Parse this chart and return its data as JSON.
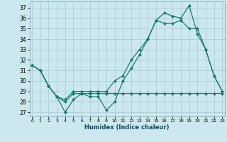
{
  "xlabel": "Humidex (Indice chaleur)",
  "background_color": "#cce8ee",
  "line_color": "#1a7a6e",
  "grid_color": "#aacdd6",
  "x_ticks": [
    0,
    1,
    2,
    3,
    4,
    5,
    6,
    7,
    8,
    9,
    10,
    11,
    12,
    13,
    14,
    15,
    16,
    17,
    18,
    19,
    20,
    21,
    22,
    23
  ],
  "y_ticks": [
    27,
    28,
    29,
    30,
    31,
    32,
    33,
    34,
    35,
    36,
    37
  ],
  "xlim": [
    -0.3,
    23.3
  ],
  "ylim": [
    26.6,
    37.6
  ],
  "line1_x": [
    0,
    1,
    2,
    3,
    4,
    5,
    6,
    7,
    8,
    9,
    10,
    11,
    12,
    13,
    14,
    15,
    16,
    17,
    18,
    19,
    20,
    21,
    22,
    23
  ],
  "line1_y": [
    31.5,
    31.0,
    29.5,
    28.5,
    28.0,
    28.8,
    28.8,
    28.8,
    28.8,
    28.8,
    28.8,
    28.8,
    28.8,
    28.8,
    28.8,
    28.8,
    28.8,
    28.8,
    28.8,
    28.8,
    28.8,
    28.8,
    28.8,
    28.8
  ],
  "line2_x": [
    0,
    1,
    2,
    3,
    4,
    5,
    6,
    7,
    8,
    9,
    10,
    11,
    12,
    13,
    14,
    15,
    16,
    17,
    18,
    19,
    20,
    21,
    22,
    23
  ],
  "line2_y": [
    31.5,
    31.0,
    29.5,
    28.5,
    27.0,
    28.2,
    28.8,
    28.5,
    28.5,
    27.2,
    28.0,
    30.0,
    31.2,
    32.5,
    34.0,
    35.8,
    35.5,
    35.5,
    35.8,
    35.0,
    35.0,
    33.0,
    30.5,
    29.0
  ],
  "line3_x": [
    0,
    1,
    2,
    3,
    4,
    5,
    6,
    7,
    8,
    9,
    10,
    11,
    12,
    13,
    14,
    15,
    16,
    17,
    18,
    19,
    20,
    21,
    22,
    23
  ],
  "line3_y": [
    31.5,
    31.0,
    29.5,
    28.5,
    28.2,
    29.0,
    29.0,
    29.0,
    29.0,
    29.0,
    30.0,
    30.5,
    32.0,
    33.0,
    34.0,
    35.8,
    36.5,
    36.2,
    36.0,
    37.2,
    34.5,
    33.0,
    30.5,
    29.0
  ],
  "marker_size": 2.5,
  "linewidth": 0.9
}
